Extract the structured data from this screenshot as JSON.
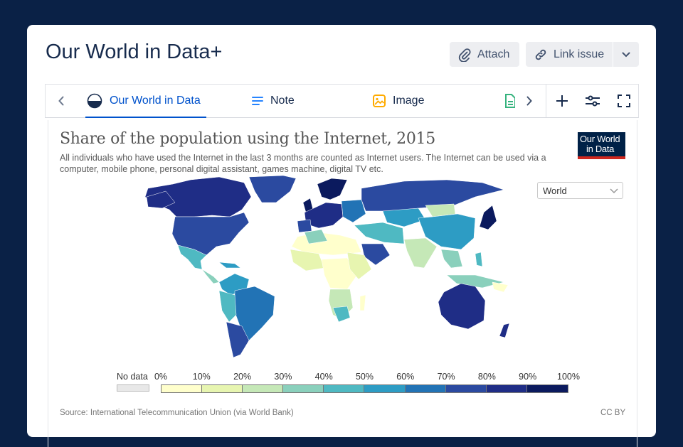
{
  "page": {
    "title": "Our World in Data+",
    "attach_label": "Attach",
    "link_issue_label": "Link issue"
  },
  "tabs": [
    {
      "label": "Our World in Data",
      "icon": "owid-globe-icon",
      "active": true
    },
    {
      "label": "Note",
      "icon": "lines-icon",
      "active": false
    },
    {
      "label": "Image",
      "icon": "image-icon",
      "active": false
    }
  ],
  "embed": {
    "title": "Share of the population using the Internet, 2015",
    "subtitle": "All individuals who have used the Internet in the last 3 months are counted as Internet users. The Internet can be used via a computer, mobile phone, personal digital assistant, games machine, digital TV etc.",
    "logo_line1": "Our World",
    "logo_line2": "in Data",
    "region_select": "World",
    "legend": {
      "no_data_label": "No data",
      "ticks": [
        "0%",
        "10%",
        "20%",
        "30%",
        "40%",
        "50%",
        "60%",
        "70%",
        "80%",
        "90%",
        "100%"
      ],
      "colors": [
        "#ffffcc",
        "#e7f5b0",
        "#c5e8b7",
        "#8ad0bc",
        "#4fb9c2",
        "#2d9cc4",
        "#2273b5",
        "#2b4aa0",
        "#1f2d86",
        "#0b1a5e"
      ]
    },
    "source": "Source: International Telecommunication Union (via World Bank)",
    "license": "CC BY"
  },
  "colors": {
    "background": "#0a2146",
    "accent": "#0052cc"
  }
}
